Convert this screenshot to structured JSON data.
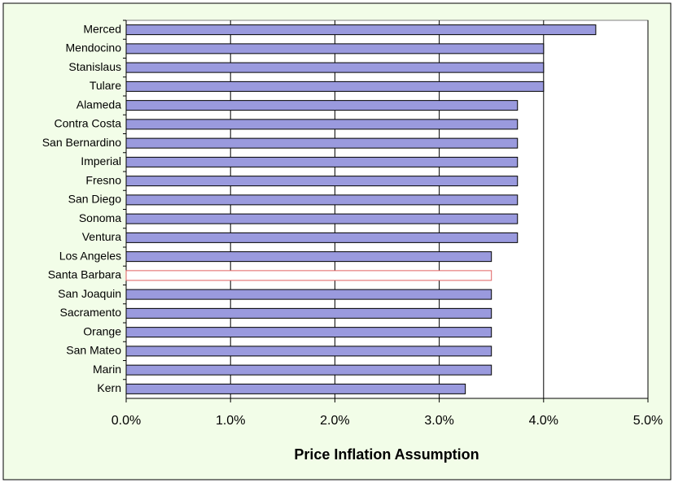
{
  "chart_data": {
    "type": "bar",
    "orientation": "horizontal",
    "x_label": "Price Inflation Assumption",
    "categories": [
      "Merced",
      "Mendocino",
      "Stanislaus",
      "Tulare",
      "Alameda",
      "Contra Costa",
      "San Bernardino",
      "Imperial",
      "Fresno",
      "San Diego",
      "Sonoma",
      "Ventura",
      "Los Angeles",
      "Santa Barbara",
      "San Joaquin",
      "Sacramento",
      "Orange",
      "San Mateo",
      "Marin",
      "Kern"
    ],
    "values": [
      4.5,
      4.0,
      4.0,
      4.0,
      3.75,
      3.75,
      3.75,
      3.75,
      3.75,
      3.75,
      3.75,
      3.75,
      3.5,
      3.5,
      3.5,
      3.5,
      3.5,
      3.5,
      3.5,
      3.25
    ],
    "colors": [
      "#9a9ade",
      "#9a9ade",
      "#9a9ade",
      "#9a9ade",
      "#9a9ade",
      "#9a9ade",
      "#9a9ade",
      "#9a9ade",
      "#9a9ade",
      "#9a9ade",
      "#9a9ade",
      "#9a9ade",
      "#9a9ade",
      "#ffffff",
      "#9a9ade",
      "#9a9ade",
      "#9a9ade",
      "#9a9ade",
      "#9a9ade",
      "#9a9ade"
    ],
    "xlim": [
      0,
      5
    ],
    "xticks": [
      {
        "value": 0,
        "label": "0.0%"
      },
      {
        "value": 1,
        "label": "1.0%"
      },
      {
        "value": 2,
        "label": "2.0%"
      },
      {
        "value": 3,
        "label": "3.0%"
      },
      {
        "value": 4,
        "label": "4.0%"
      },
      {
        "value": 5,
        "label": "5.0%"
      }
    ],
    "grid": true
  }
}
